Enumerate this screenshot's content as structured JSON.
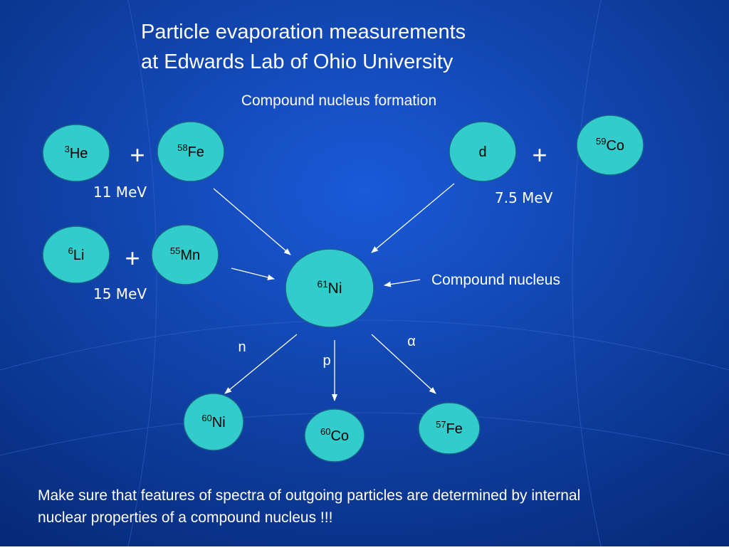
{
  "title": {
    "lines": [
      "Particle evaporation measurements",
      "at Edwards Lab of Ohio University"
    ]
  },
  "subtitle": "Compound nucleus formation",
  "reactions": [
    {
      "projectile": {
        "mass": "3",
        "symbol": "He"
      },
      "plus": "+",
      "target": {
        "mass": "58",
        "symbol": "Fe"
      },
      "energy": "11 MeV"
    },
    {
      "projectile": {
        "mass": "6",
        "symbol": "Li"
      },
      "plus": "+",
      "target": {
        "mass": "55",
        "symbol": "Mn"
      },
      "energy": "15 MeV"
    },
    {
      "projectile": {
        "mass": "",
        "symbol": "d"
      },
      "plus": "+",
      "target": {
        "mass": "59",
        "symbol": "Co"
      },
      "energy": "7.5 MeV"
    }
  ],
  "compound": {
    "mass": "61",
    "symbol": "Ni",
    "label": "Compound nucleus"
  },
  "products": [
    {
      "particle": "n",
      "mass": "60",
      "symbol": "Ni"
    },
    {
      "particle": "p",
      "mass": "60",
      "symbol": "Co"
    },
    {
      "particle": "α",
      "mass": "57",
      "symbol": "Fe"
    }
  ],
  "note": {
    "lines": [
      "Make sure that features of spectra of outgoing particles are determined by internal",
      "nuclear properties of a compound nucleus !!!"
    ]
  }
}
